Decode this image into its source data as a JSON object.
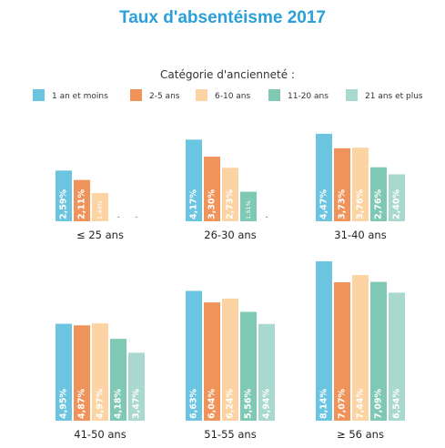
{
  "chart_data": {
    "type": "bar",
    "title": "Taux d'absentéisme 2017",
    "legend_title": "Catégorie d'ancienneté :",
    "legend_position": "top",
    "grid": false,
    "colors": [
      "#6cc5e0",
      "#f0935a",
      "#fcd4a3",
      "#7fc9b4",
      "#a9d9ce"
    ],
    "series_names": [
      "1 an et moins",
      "2-5 ans",
      "6-10 ans",
      "11-20 ans",
      "21 ans et plus"
    ],
    "groups": [
      {
        "label": "≤ 25 ans",
        "values": [
          2.59,
          2.11,
          1.44,
          null,
          null
        ],
        "labels": [
          "2,59%",
          "2,11%",
          "1,44%",
          ".",
          "."
        ]
      },
      {
        "label": "26-30 ans",
        "values": [
          4.17,
          3.3,
          2.73,
          1.51,
          null
        ],
        "labels": [
          "4,17%",
          "3,30%",
          "2,73%",
          "1,51%",
          "."
        ]
      },
      {
        "label": "31-40 ans",
        "values": [
          4.47,
          3.73,
          3.76,
          2.76,
          2.4
        ],
        "labels": [
          "4,47%",
          "3,73%",
          "3,76%",
          "2,76%",
          "2,40%"
        ]
      },
      {
        "label": "41-50 ans",
        "values": [
          4.95,
          4.87,
          4.97,
          4.18,
          3.47
        ],
        "labels": [
          "4,95%",
          "4,87%",
          "4,97%",
          "4,18%",
          "3,47%"
        ]
      },
      {
        "label": "51-55 ans",
        "values": [
          6.63,
          6.04,
          6.24,
          5.56,
          4.94
        ],
        "labels": [
          "6,63%",
          "6,04%",
          "6,24%",
          "5,56%",
          "4,94%"
        ]
      },
      {
        "label": "≥ 56 ans",
        "values": [
          8.14,
          7.07,
          7.44,
          7.09,
          6.54
        ],
        "labels": [
          "8,14%",
          "7,07%",
          "7,44%",
          "7,09%",
          "6,54%"
        ]
      }
    ]
  }
}
